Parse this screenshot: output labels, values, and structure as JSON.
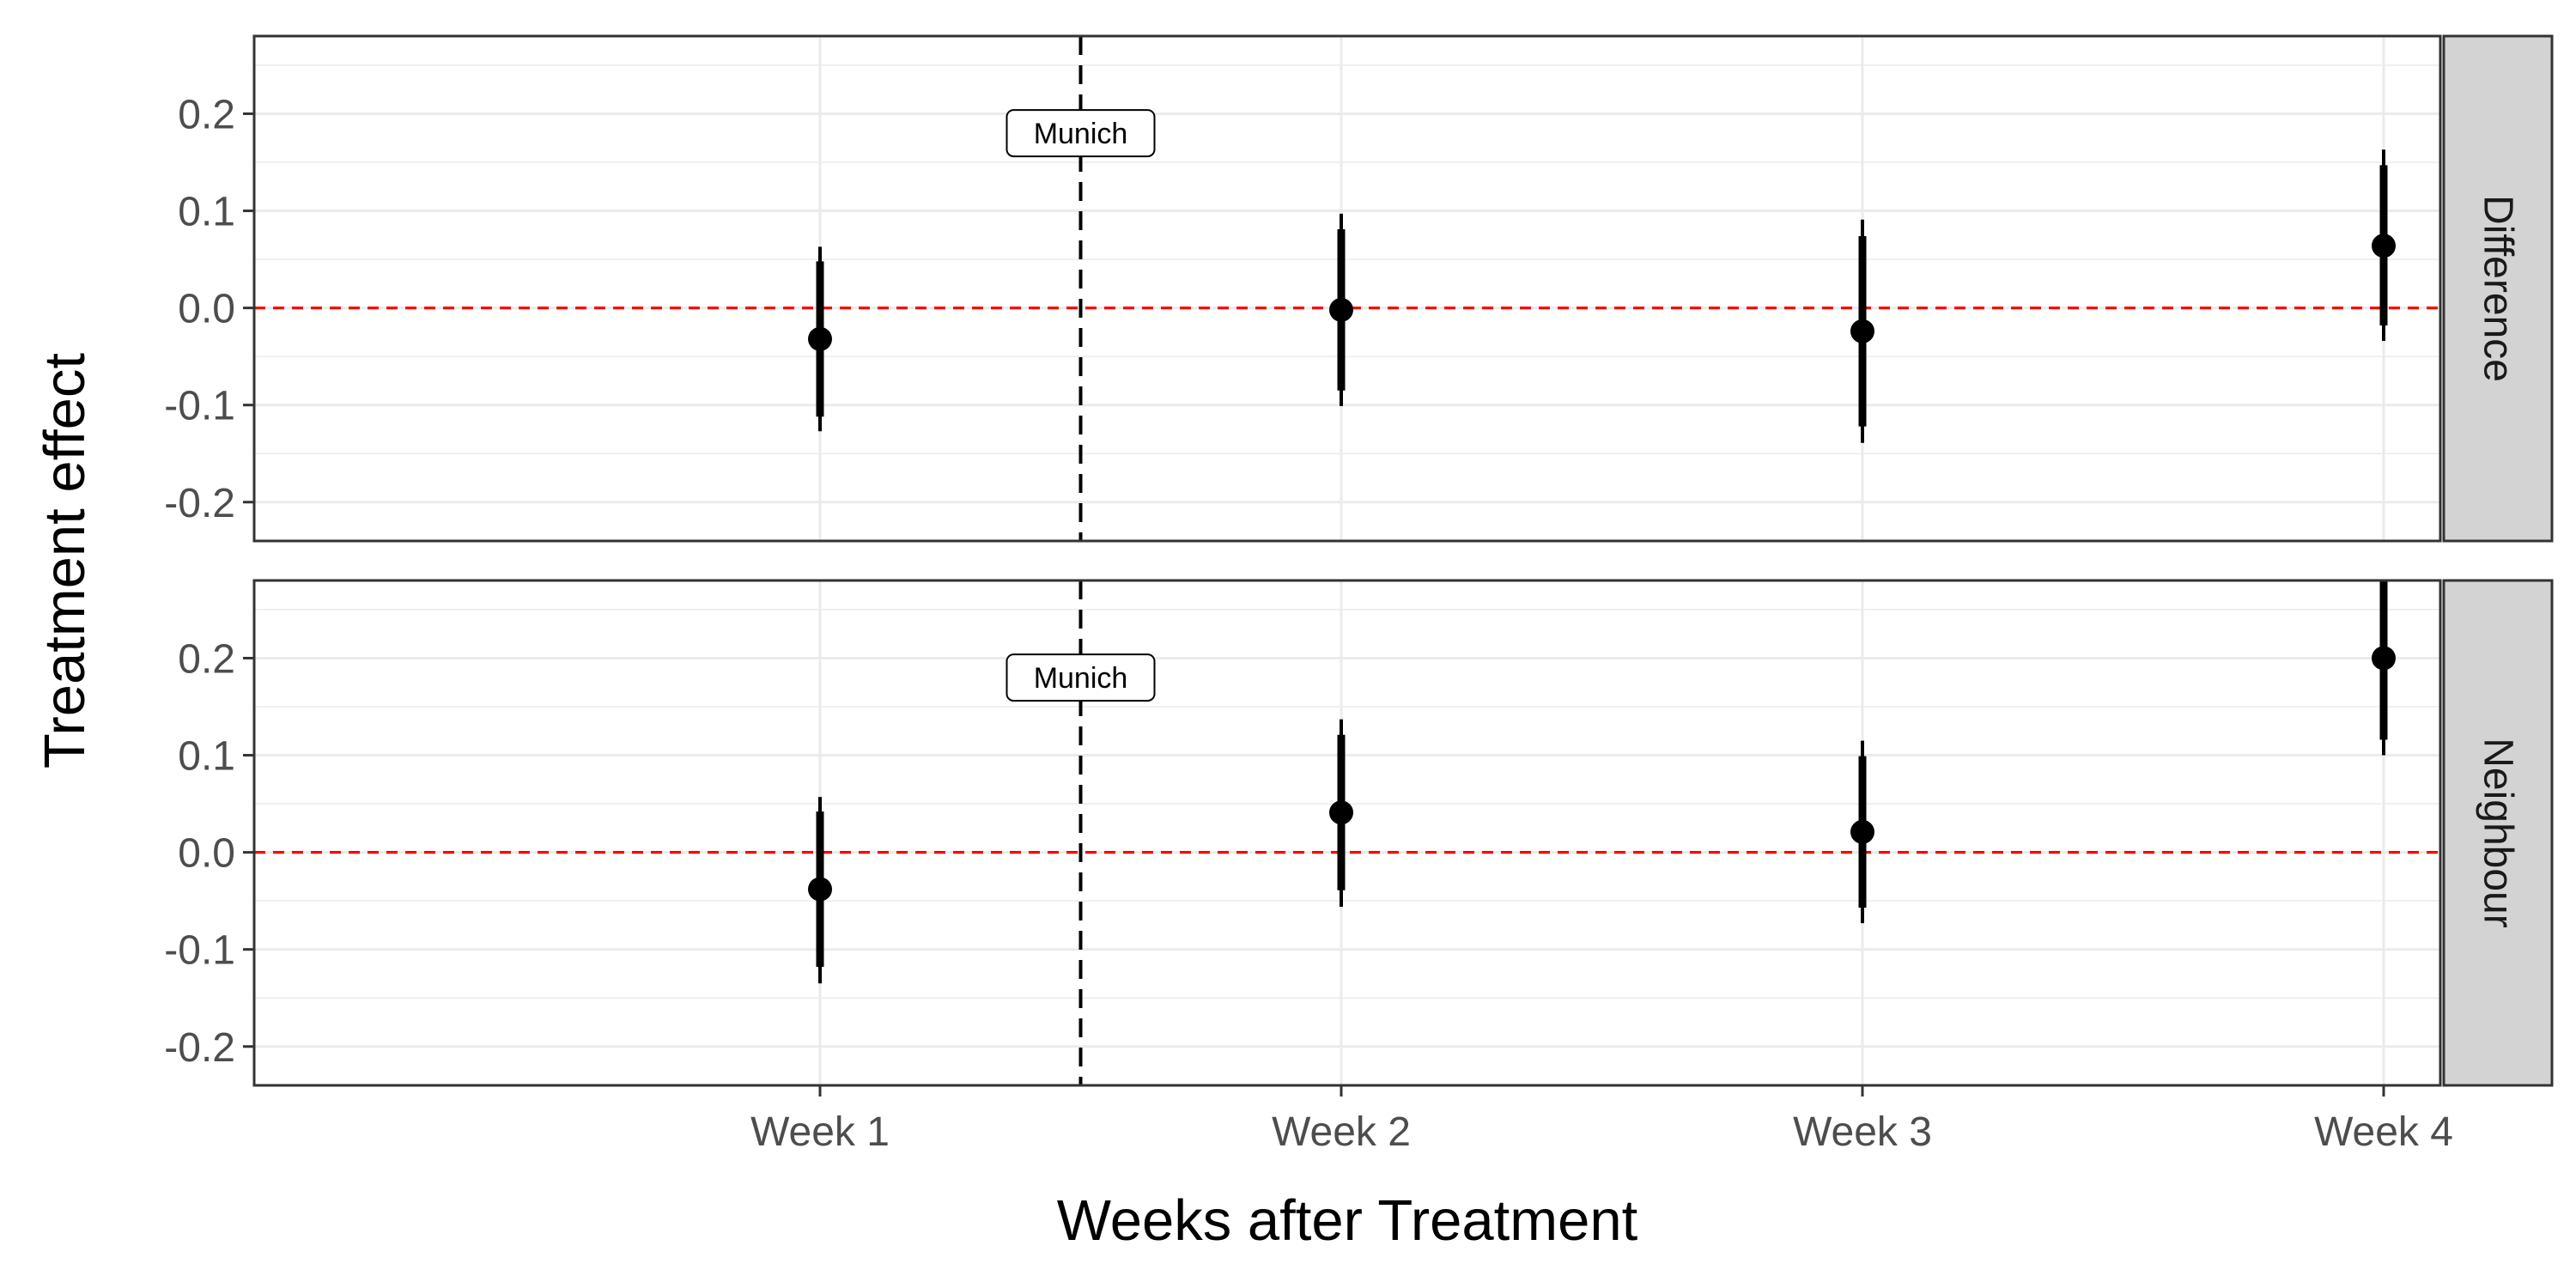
{
  "chart_data": {
    "type": "scatter",
    "subtype": "point-range faceted",
    "xlabel": "Weeks after Treatment",
    "ylabel": "Treatment effect",
    "categories": [
      "Week 1",
      "Week 2",
      "Week 3",
      "Week 4"
    ],
    "ylim": [
      -0.24,
      0.28
    ],
    "yticks": [
      -0.2,
      -0.1,
      0.0,
      0.1,
      0.2
    ],
    "ytick_labels": [
      "-0.2",
      "-0.1",
      "0.0",
      "0.1",
      "0.2"
    ],
    "reference_line": {
      "y": 0,
      "style": "dashed",
      "color": "#ff0000"
    },
    "event_line": {
      "position": "between Week 1 and Week 2",
      "label": "Munich",
      "style": "dashed",
      "color": "#000000"
    },
    "grid": true,
    "colors": {
      "points": "#000000",
      "strip": "#d3d3d3",
      "grid": "#ebebeb"
    },
    "facets": [
      {
        "label": "Difference",
        "points": [
          {
            "x": "Week 1",
            "estimate": -0.032,
            "ci_inner": [
              -0.112,
              0.048
            ],
            "ci_outer": [
              -0.127,
              0.063
            ]
          },
          {
            "x": "Week 2",
            "estimate": -0.002,
            "ci_inner": [
              -0.085,
              0.081
            ],
            "ci_outer": [
              -0.101,
              0.097
            ]
          },
          {
            "x": "Week 3",
            "estimate": -0.024,
            "ci_inner": [
              -0.122,
              0.074
            ],
            "ci_outer": [
              -0.139,
              0.091
            ]
          },
          {
            "x": "Week 4",
            "estimate": 0.064,
            "ci_inner": [
              -0.018,
              0.147
            ],
            "ci_outer": [
              -0.034,
              0.163
            ]
          }
        ]
      },
      {
        "label": "Neighbour",
        "points": [
          {
            "x": "Week 1",
            "estimate": -0.038,
            "ci_inner": [
              -0.118,
              0.042
            ],
            "ci_outer": [
              -0.135,
              0.057
            ]
          },
          {
            "x": "Week 2",
            "estimate": 0.041,
            "ci_inner": [
              -0.039,
              0.121
            ],
            "ci_outer": [
              -0.056,
              0.137
            ]
          },
          {
            "x": "Week 3",
            "estimate": 0.021,
            "ci_inner": [
              -0.057,
              0.099
            ],
            "ci_outer": [
              -0.073,
              0.115
            ]
          },
          {
            "x": "Week 4",
            "estimate": 0.2,
            "ci_inner": [
              0.116,
              0.284
            ],
            "ci_outer": [
              0.1,
              0.3
            ]
          }
        ]
      }
    ]
  }
}
